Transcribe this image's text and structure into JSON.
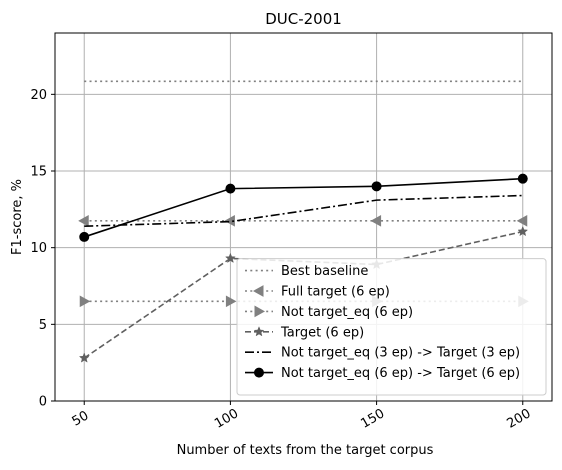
{
  "chart_data": {
    "type": "line",
    "title": "DUC-2001",
    "xlabel": "Number of texts from the target corpus",
    "ylabel": "F1-score, %",
    "x": [
      50,
      100,
      150,
      200
    ],
    "x_ticks": [
      "50",
      "100",
      "150",
      "200"
    ],
    "y_ticks": [
      0,
      5,
      10,
      15,
      20
    ],
    "xlim": [
      40,
      210
    ],
    "ylim": [
      0,
      24
    ],
    "grid": true,
    "legend_position": "lower-right",
    "series": [
      {
        "name": "Best baseline",
        "values": [
          20.85,
          20.85,
          20.85,
          20.85
        ],
        "color": "#808080",
        "linestyle": "dotted",
        "marker": "none"
      },
      {
        "name": "Full target (6 ep)",
        "values": [
          11.75,
          11.75,
          11.75,
          11.75
        ],
        "color": "#808080",
        "linestyle": "dotted",
        "marker": "triangle-left"
      },
      {
        "name": "Not target_eq (6 ep)",
        "values": [
          6.5,
          6.5,
          6.5,
          6.5
        ],
        "color": "#808080",
        "linestyle": "dotted",
        "marker": "triangle-right"
      },
      {
        "name": "Target (6 ep)",
        "values": [
          2.8,
          9.3,
          8.9,
          11.05
        ],
        "color": "#606060",
        "linestyle": "dashed",
        "marker": "star"
      },
      {
        "name": "Not target_eq (3 ep) -> Target (3 ep)",
        "values": [
          11.4,
          11.7,
          13.1,
          13.4
        ],
        "color": "#000000",
        "linestyle": "dashdot",
        "marker": "none"
      },
      {
        "name": "Not target_eq (6 ep) -> Target (6 ep)",
        "values": [
          10.7,
          13.85,
          14.0,
          14.5
        ],
        "color": "#000000",
        "linestyle": "solid",
        "marker": "circle"
      }
    ]
  }
}
